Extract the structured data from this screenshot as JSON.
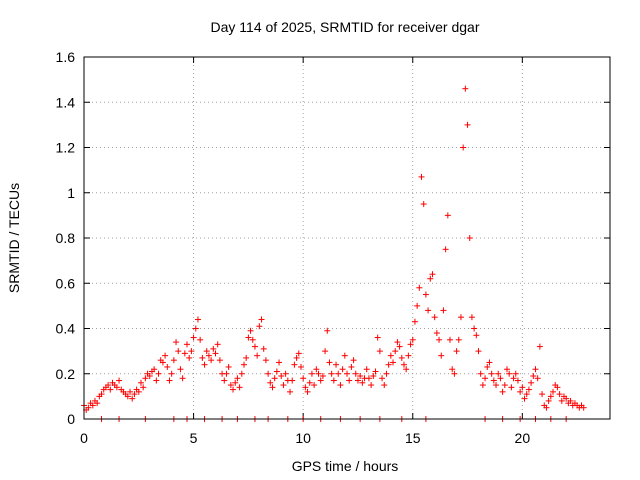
{
  "chart_data": {
    "type": "scatter",
    "title": "Day 114 of 2025, SRMTID for receiver dgar",
    "xlabel": "GPS time / hours",
    "ylabel": "SRMTID / TECUs",
    "xlim": [
      0,
      24
    ],
    "ylim": [
      0,
      1.6
    ],
    "grid": true,
    "marker": "+",
    "color": "#ff0000",
    "x_ticks": [
      0,
      5,
      10,
      15,
      20
    ],
    "x_tick_labels": [
      "0",
      "5",
      "10",
      "15",
      "20"
    ],
    "y_ticks": [
      0,
      0.2,
      0.4,
      0.6,
      0.8,
      1.0,
      1.2,
      1.4,
      1.6
    ],
    "y_tick_labels": [
      "0",
      "0.2",
      "0.4",
      "0.6",
      "0.8",
      "1",
      "1.2",
      "1.4",
      "1.6"
    ],
    "series": [
      {
        "name": "SRMTID",
        "points": [
          [
            0.0,
            0.06
          ],
          [
            0.1,
            0.04
          ],
          [
            0.2,
            0.05
          ],
          [
            0.3,
            0.07
          ],
          [
            0.4,
            0.06
          ],
          [
            0.5,
            0.08
          ],
          [
            0.6,
            0.07
          ],
          [
            0.7,
            0.1
          ],
          [
            0.8,
            0.11
          ],
          [
            0.9,
            0.13
          ],
          [
            1.0,
            0.14
          ],
          [
            1.1,
            0.15
          ],
          [
            1.2,
            0.13
          ],
          [
            1.3,
            0.16
          ],
          [
            1.4,
            0.15
          ],
          [
            1.5,
            0.14
          ],
          [
            1.6,
            0.17
          ],
          [
            1.7,
            0.13
          ],
          [
            1.8,
            0.12
          ],
          [
            1.9,
            0.11
          ],
          [
            2.0,
            0.1
          ],
          [
            2.1,
            0.12
          ],
          [
            2.2,
            0.09
          ],
          [
            2.3,
            0.11
          ],
          [
            2.4,
            0.13
          ],
          [
            2.5,
            0.12
          ],
          [
            2.6,
            0.16
          ],
          [
            2.7,
            0.14
          ],
          [
            2.8,
            0.18
          ],
          [
            2.9,
            0.2
          ],
          [
            3.0,
            0.19
          ],
          [
            3.1,
            0.21
          ],
          [
            3.2,
            0.22
          ],
          [
            3.3,
            0.17
          ],
          [
            3.4,
            0.2
          ],
          [
            3.5,
            0.26
          ],
          [
            3.6,
            0.25
          ],
          [
            3.7,
            0.28
          ],
          [
            3.8,
            0.23
          ],
          [
            3.9,
            0.17
          ],
          [
            4.0,
            0.2
          ],
          [
            4.1,
            0.26
          ],
          [
            4.2,
            0.34
          ],
          [
            4.3,
            0.3
          ],
          [
            4.4,
            0.22
          ],
          [
            4.5,
            0.18
          ],
          [
            4.6,
            0.29
          ],
          [
            4.7,
            0.33
          ],
          [
            4.8,
            0.27
          ],
          [
            4.9,
            0.3
          ],
          [
            5.0,
            0.36
          ],
          [
            5.1,
            0.4
          ],
          [
            5.2,
            0.44
          ],
          [
            5.3,
            0.35
          ],
          [
            5.4,
            0.27
          ],
          [
            5.5,
            0.24
          ],
          [
            5.6,
            0.3
          ],
          [
            5.7,
            0.28
          ],
          [
            5.8,
            0.26
          ],
          [
            5.9,
            0.31
          ],
          [
            6.0,
            0.29
          ],
          [
            6.1,
            0.33
          ],
          [
            6.2,
            0.26
          ],
          [
            6.3,
            0.2
          ],
          [
            6.4,
            0.17
          ],
          [
            6.5,
            0.2
          ],
          [
            6.6,
            0.23
          ],
          [
            6.7,
            0.15
          ],
          [
            6.8,
            0.13
          ],
          [
            6.9,
            0.16
          ],
          [
            7.0,
            0.18
          ],
          [
            7.1,
            0.14
          ],
          [
            7.2,
            0.2
          ],
          [
            7.3,
            0.24
          ],
          [
            7.4,
            0.27
          ],
          [
            7.5,
            0.36
          ],
          [
            7.6,
            0.39
          ],
          [
            7.7,
            0.35
          ],
          [
            7.8,
            0.32
          ],
          [
            7.9,
            0.28
          ],
          [
            8.0,
            0.41
          ],
          [
            8.1,
            0.44
          ],
          [
            8.2,
            0.31
          ],
          [
            8.3,
            0.26
          ],
          [
            8.4,
            0.2
          ],
          [
            8.5,
            0.16
          ],
          [
            8.6,
            0.14
          ],
          [
            8.7,
            0.18
          ],
          [
            8.8,
            0.21
          ],
          [
            8.9,
            0.25
          ],
          [
            9.0,
            0.19
          ],
          [
            9.1,
            0.15
          ],
          [
            9.2,
            0.2
          ],
          [
            9.3,
            0.17
          ],
          [
            9.4,
            0.12
          ],
          [
            9.5,
            0.17
          ],
          [
            9.6,
            0.24
          ],
          [
            9.7,
            0.27
          ],
          [
            9.8,
            0.29
          ],
          [
            9.9,
            0.23
          ],
          [
            10.0,
            0.18
          ],
          [
            10.1,
            0.14
          ],
          [
            10.2,
            0.12
          ],
          [
            10.3,
            0.16
          ],
          [
            10.4,
            0.2
          ],
          [
            10.5,
            0.15
          ],
          [
            10.6,
            0.22
          ],
          [
            10.7,
            0.2
          ],
          [
            10.8,
            0.17
          ],
          [
            10.9,
            0.19
          ],
          [
            11.0,
            0.3
          ],
          [
            11.1,
            0.39
          ],
          [
            11.2,
            0.25
          ],
          [
            11.3,
            0.2
          ],
          [
            11.4,
            0.17
          ],
          [
            11.5,
            0.24
          ],
          [
            11.6,
            0.2
          ],
          [
            11.7,
            0.15
          ],
          [
            11.8,
            0.22
          ],
          [
            11.9,
            0.28
          ],
          [
            12.0,
            0.2
          ],
          [
            12.1,
            0.17
          ],
          [
            12.2,
            0.23
          ],
          [
            12.3,
            0.26
          ],
          [
            12.4,
            0.2
          ],
          [
            12.5,
            0.17
          ],
          [
            12.6,
            0.19
          ],
          [
            12.7,
            0.16
          ],
          [
            12.8,
            0.18
          ],
          [
            12.9,
            0.22
          ],
          [
            13.0,
            0.18
          ],
          [
            13.1,
            0.15
          ],
          [
            13.2,
            0.19
          ],
          [
            13.3,
            0.21
          ],
          [
            13.4,
            0.36
          ],
          [
            13.5,
            0.3
          ],
          [
            13.6,
            0.18
          ],
          [
            13.7,
            0.15
          ],
          [
            13.8,
            0.2
          ],
          [
            13.9,
            0.24
          ],
          [
            14.0,
            0.28
          ],
          [
            14.1,
            0.25
          ],
          [
            14.2,
            0.3
          ],
          [
            14.3,
            0.34
          ],
          [
            14.4,
            0.32
          ],
          [
            14.5,
            0.27
          ],
          [
            14.6,
            0.24
          ],
          [
            14.7,
            0.22
          ],
          [
            14.8,
            0.28
          ],
          [
            14.9,
            0.33
          ],
          [
            15.0,
            0.35
          ],
          [
            15.1,
            0.43
          ],
          [
            15.2,
            0.5
          ],
          [
            15.3,
            0.58
          ],
          [
            15.4,
            1.07
          ],
          [
            15.5,
            0.95
          ],
          [
            15.6,
            0.55
          ],
          [
            15.7,
            0.48
          ],
          [
            15.8,
            0.62
          ],
          [
            15.9,
            0.64
          ],
          [
            16.0,
            0.45
          ],
          [
            16.1,
            0.38
          ],
          [
            16.2,
            0.35
          ],
          [
            16.3,
            0.28
          ],
          [
            16.4,
            0.48
          ],
          [
            16.5,
            0.75
          ],
          [
            16.6,
            0.9
          ],
          [
            16.7,
            0.35
          ],
          [
            16.8,
            0.22
          ],
          [
            16.9,
            0.2
          ],
          [
            17.0,
            0.3
          ],
          [
            17.1,
            0.35
          ],
          [
            17.2,
            0.45
          ],
          [
            17.3,
            1.2
          ],
          [
            17.4,
            1.46
          ],
          [
            17.5,
            1.3
          ],
          [
            17.6,
            0.8
          ],
          [
            17.7,
            0.45
          ],
          [
            17.8,
            0.4
          ],
          [
            17.9,
            0.37
          ],
          [
            18.0,
            0.3
          ],
          [
            18.1,
            0.2
          ],
          [
            18.2,
            0.15
          ],
          [
            18.3,
            0.18
          ],
          [
            18.4,
            0.23
          ],
          [
            18.5,
            0.25
          ],
          [
            18.6,
            0.2
          ],
          [
            18.7,
            0.17
          ],
          [
            18.8,
            0.15
          ],
          [
            18.9,
            0.2
          ],
          [
            19.0,
            0.18
          ],
          [
            19.1,
            0.12
          ],
          [
            19.2,
            0.15
          ],
          [
            19.3,
            0.22
          ],
          [
            19.4,
            0.2
          ],
          [
            19.5,
            0.14
          ],
          [
            19.6,
            0.18
          ],
          [
            19.7,
            0.2
          ],
          [
            19.8,
            0.17
          ],
          [
            19.9,
            0.12
          ],
          [
            20.0,
            0.14
          ],
          [
            20.1,
            0.09
          ],
          [
            20.2,
            0.11
          ],
          [
            20.3,
            0.13
          ],
          [
            20.4,
            0.16
          ],
          [
            20.5,
            0.19
          ],
          [
            20.6,
            0.22
          ],
          [
            20.7,
            0.18
          ],
          [
            20.8,
            0.32
          ],
          [
            20.9,
            0.11
          ],
          [
            21.0,
            0.06
          ],
          [
            21.1,
            0.05
          ],
          [
            21.2,
            0.08
          ],
          [
            21.3,
            0.1
          ],
          [
            21.4,
            0.12
          ],
          [
            21.5,
            0.15
          ],
          [
            21.6,
            0.14
          ],
          [
            21.7,
            0.11
          ],
          [
            21.8,
            0.08
          ],
          [
            21.9,
            0.1
          ],
          [
            22.0,
            0.09
          ],
          [
            22.1,
            0.07
          ],
          [
            22.2,
            0.08
          ],
          [
            22.3,
            0.06
          ],
          [
            22.4,
            0.07
          ],
          [
            22.5,
            0.06
          ],
          [
            22.6,
            0.05
          ],
          [
            22.7,
            0.06
          ],
          [
            22.8,
            0.05
          ],
          [
            0.8,
            0.0
          ],
          [
            1.6,
            0.0
          ],
          [
            2.8,
            0.0
          ],
          [
            4.1,
            0.0
          ],
          [
            4.7,
            0.0
          ],
          [
            5.5,
            0.0
          ],
          [
            6.3,
            0.0
          ],
          [
            7.0,
            0.0
          ],
          [
            7.8,
            0.0
          ],
          [
            8.4,
            0.0
          ],
          [
            9.3,
            0.0
          ],
          [
            10.0,
            0.0
          ],
          [
            10.8,
            0.0
          ],
          [
            11.7,
            0.0
          ],
          [
            12.6,
            0.0
          ],
          [
            13.5,
            0.0
          ],
          [
            14.5,
            0.0
          ],
          [
            15.6,
            0.0
          ],
          [
            18.3,
            0.0
          ],
          [
            19.1,
            0.0
          ],
          [
            19.9,
            0.0
          ],
          [
            20.6,
            0.0
          ],
          [
            21.3,
            0.0
          ],
          [
            22.0,
            0.0
          ]
        ]
      }
    ]
  }
}
